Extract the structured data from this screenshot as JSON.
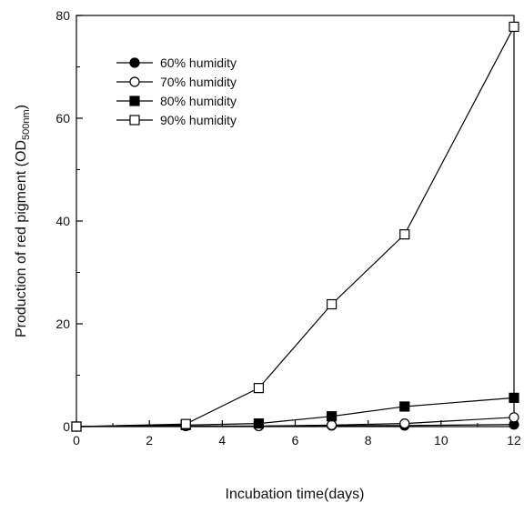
{
  "chart_data": {
    "type": "line",
    "xlabel": "Incubation time(days)",
    "ylabel": "Production of red pigment (OD",
    "ylabel_sub": "500nm",
    "ylabel_close": ")",
    "xlim": [
      0,
      12
    ],
    "ylim": [
      0,
      80
    ],
    "xticks": [
      "0",
      "2",
      "4",
      "6",
      "8",
      "10",
      "12"
    ],
    "yticks": [
      "0",
      "20",
      "40",
      "60",
      "80"
    ],
    "grid": false,
    "legend_position": "top-left",
    "series": [
      {
        "name": "60% humidity",
        "marker": "filled-circle",
        "x": [
          0,
          3,
          5,
          7,
          9,
          12
        ],
        "values": [
          0,
          0.1,
          0.1,
          0.2,
          0.2,
          0.4
        ]
      },
      {
        "name": "70% humidity",
        "marker": "open-circle",
        "x": [
          0,
          3,
          5,
          7,
          9,
          12
        ],
        "values": [
          0,
          0.1,
          0.1,
          0.3,
          0.6,
          1.8
        ]
      },
      {
        "name": "80% humidity",
        "marker": "filled-square",
        "x": [
          0,
          3,
          5,
          7,
          9,
          12
        ],
        "values": [
          0,
          0.3,
          0.6,
          2.0,
          3.9,
          5.6
        ]
      },
      {
        "name": "90% humidity",
        "marker": "open-square",
        "x": [
          0,
          3,
          5,
          7,
          9,
          12
        ],
        "values": [
          0,
          0.5,
          7.5,
          23.8,
          37.4,
          77.8
        ]
      }
    ]
  }
}
